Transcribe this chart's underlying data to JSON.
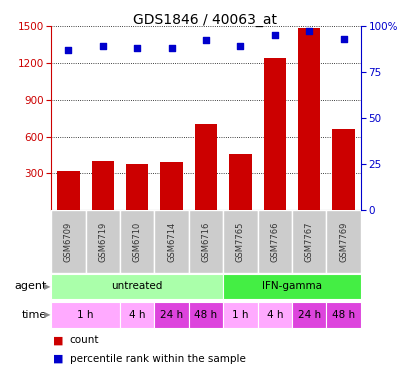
{
  "title": "GDS1846 / 40063_at",
  "samples": [
    "GSM6709",
    "GSM6719",
    "GSM6710",
    "GSM6714",
    "GSM6716",
    "GSM7765",
    "GSM7766",
    "GSM7767",
    "GSM7769"
  ],
  "counts": [
    320,
    400,
    380,
    390,
    700,
    460,
    1240,
    1480,
    660
  ],
  "percentiles": [
    87,
    89,
    88,
    88,
    92,
    89,
    95,
    97,
    93
  ],
  "ylim_left": [
    0,
    1500
  ],
  "ylim_right": [
    0,
    100
  ],
  "yticks_left": [
    300,
    600,
    900,
    1200,
    1500
  ],
  "yticks_right": [
    0,
    25,
    50,
    75,
    100
  ],
  "bar_color": "#cc0000",
  "dot_color": "#0000cc",
  "agent_labels": [
    {
      "label": "untreated",
      "start": 0,
      "end": 5,
      "color": "#aaffaa"
    },
    {
      "label": "IFN-gamma",
      "start": 5,
      "end": 9,
      "color": "#44ee44"
    }
  ],
  "time_labels": [
    {
      "label": "1 h",
      "start": 0,
      "end": 2,
      "color": "#ffaaff"
    },
    {
      "label": "4 h",
      "start": 2,
      "end": 3,
      "color": "#ffaaff"
    },
    {
      "label": "24 h",
      "start": 3,
      "end": 4,
      "color": "#dd44dd"
    },
    {
      "label": "48 h",
      "start": 4,
      "end": 5,
      "color": "#dd44dd"
    },
    {
      "label": "1 h",
      "start": 5,
      "end": 6,
      "color": "#ffaaff"
    },
    {
      "label": "4 h",
      "start": 6,
      "end": 7,
      "color": "#ffaaff"
    },
    {
      "label": "24 h",
      "start": 7,
      "end": 8,
      "color": "#dd44dd"
    },
    {
      "label": "48 h",
      "start": 8,
      "end": 9,
      "color": "#dd44dd"
    }
  ],
  "bg_color": "#ffffff",
  "plot_bg": "#ffffff",
  "sample_label_color": "#333333",
  "left_axis_color": "#cc0000",
  "right_axis_color": "#0000cc",
  "agent_row_label": "agent",
  "time_row_label": "time",
  "legend_count_label": "count",
  "legend_pct_label": "percentile rank within the sample",
  "grid_color": "#000000",
  "sample_bg_color": "#cccccc"
}
